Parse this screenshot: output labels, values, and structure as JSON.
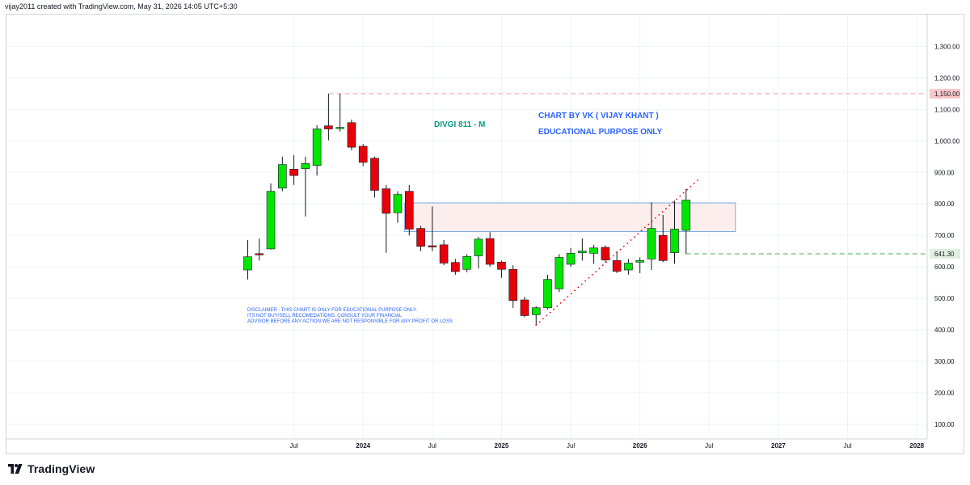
{
  "header": {
    "created_by": "vijay2011 created with TradingView.com, May 31, 2026 14:05 UTC+5:30"
  },
  "footer": {
    "brand": "TradingView",
    "logo_icon": "tradingview-logo-icon"
  },
  "annotations": {
    "symbol_label": "DIVGI 811 - M",
    "chart_by": "CHART BY VK ( VIJAY KHANT )",
    "educational": "EDUCATIONAL PURPOSE ONLY",
    "disclaimer": [
      "DISCLAIMER - THIS CHART IS ONLY FOR EDUCATIONAL PURPOSE ONLY.",
      "ITS NOT BUY/SELL RECOMEDATIONS. CONSULT YOUR FINANCIAL",
      "ADVISOR BEFORE ANY ACTION.WE ARE NOT RESPONSIBLE FOR ANY PROFIT OR LOSS"
    ]
  },
  "colors": {
    "up": "#00e600",
    "down": "#e8000b",
    "grid": "#f0f3fa",
    "axis_text": "#131722",
    "symbol_label": "#089981",
    "note_text": "#2962ff",
    "zone_fill": "#fdecec",
    "zone_border": "#7ba7e6",
    "resistance": "#f5a3a3",
    "support": "#4caf50",
    "trend_dots": "#e8000b",
    "price_badge_red": "#f8c8c8",
    "price_badge_green": "#e0efe0"
  },
  "chart_data": {
    "type": "candlestick",
    "interval": "M",
    "ylim": [
      60,
      1360
    ],
    "y_ticks": [
      100,
      200,
      300,
      400,
      500,
      600,
      700,
      800,
      900,
      1000,
      1100,
      1200,
      1300
    ],
    "y_tick_labels": [
      "100.00",
      "200.00",
      "300.00",
      "400.00",
      "500.00",
      "600.00",
      "700.00",
      "800.00",
      "900.00",
      "1,000.00",
      "1,100.00",
      "1,200.00",
      "1,300.00"
    ],
    "x_ticks": [
      {
        "label": "Jul",
        "date": "2023-07"
      },
      {
        "label": "2024",
        "date": "2024-01",
        "bold": true
      },
      {
        "label": "Jul",
        "date": "2024-07"
      },
      {
        "label": "2025",
        "date": "2025-01",
        "bold": true
      },
      {
        "label": "Jul",
        "date": "2025-07"
      },
      {
        "label": "2026",
        "date": "2026-01",
        "bold": true
      },
      {
        "label": "Jul",
        "date": "2026-07"
      },
      {
        "label": "2027",
        "date": "2027-01",
        "bold": true
      },
      {
        "label": "Jul",
        "date": "2027-07"
      },
      {
        "label": "2028",
        "date": "2028-01",
        "bold": true
      }
    ],
    "candles": [
      {
        "date": "2023-03",
        "o": 590,
        "h": 685,
        "l": 560,
        "c": 632
      },
      {
        "date": "2023-04",
        "o": 642,
        "h": 690,
        "l": 620,
        "c": 640
      },
      {
        "date": "2023-05",
        "o": 657,
        "h": 865,
        "l": 655,
        "c": 840
      },
      {
        "date": "2023-06",
        "o": 850,
        "h": 950,
        "l": 840,
        "c": 925
      },
      {
        "date": "2023-07",
        "o": 910,
        "h": 955,
        "l": 860,
        "c": 890
      },
      {
        "date": "2023-08",
        "o": 912,
        "h": 950,
        "l": 760,
        "c": 928
      },
      {
        "date": "2023-09",
        "o": 922,
        "h": 1050,
        "l": 890,
        "c": 1038
      },
      {
        "date": "2023-10",
        "o": 1048,
        "h": 1150,
        "l": 1002,
        "c": 1038
      },
      {
        "date": "2023-11",
        "o": 1040,
        "h": 1150,
        "l": 1030,
        "c": 1043
      },
      {
        "date": "2023-12",
        "o": 1058,
        "h": 1068,
        "l": 970,
        "c": 980
      },
      {
        "date": "2024-01",
        "o": 983,
        "h": 990,
        "l": 920,
        "c": 932
      },
      {
        "date": "2024-02",
        "o": 945,
        "h": 950,
        "l": 820,
        "c": 843
      },
      {
        "date": "2024-03",
        "o": 848,
        "h": 860,
        "l": 645,
        "c": 770
      },
      {
        "date": "2024-04",
        "o": 772,
        "h": 840,
        "l": 740,
        "c": 830
      },
      {
        "date": "2024-05",
        "o": 840,
        "h": 860,
        "l": 700,
        "c": 720
      },
      {
        "date": "2024-06",
        "o": 722,
        "h": 730,
        "l": 650,
        "c": 665
      },
      {
        "date": "2024-07",
        "o": 667,
        "h": 792,
        "l": 650,
        "c": 665
      },
      {
        "date": "2024-08",
        "o": 670,
        "h": 685,
        "l": 605,
        "c": 612
      },
      {
        "date": "2024-09",
        "o": 614,
        "h": 625,
        "l": 575,
        "c": 585
      },
      {
        "date": "2024-10",
        "o": 592,
        "h": 640,
        "l": 583,
        "c": 633
      },
      {
        "date": "2024-11",
        "o": 635,
        "h": 695,
        "l": 595,
        "c": 688
      },
      {
        "date": "2024-12",
        "o": 690,
        "h": 710,
        "l": 600,
        "c": 608
      },
      {
        "date": "2025-01",
        "o": 615,
        "h": 620,
        "l": 565,
        "c": 592
      },
      {
        "date": "2025-02",
        "o": 592,
        "h": 605,
        "l": 470,
        "c": 493
      },
      {
        "date": "2025-03",
        "o": 495,
        "h": 505,
        "l": 440,
        "c": 445
      },
      {
        "date": "2025-04",
        "o": 448,
        "h": 475,
        "l": 415,
        "c": 470
      },
      {
        "date": "2025-05",
        "o": 470,
        "h": 575,
        "l": 465,
        "c": 560
      },
      {
        "date": "2025-06",
        "o": 530,
        "h": 640,
        "l": 520,
        "c": 630
      },
      {
        "date": "2025-07",
        "o": 608,
        "h": 660,
        "l": 600,
        "c": 643
      },
      {
        "date": "2025-08",
        "o": 645,
        "h": 690,
        "l": 620,
        "c": 650
      },
      {
        "date": "2025-09",
        "o": 643,
        "h": 670,
        "l": 610,
        "c": 660
      },
      {
        "date": "2025-10",
        "o": 662,
        "h": 668,
        "l": 615,
        "c": 622
      },
      {
        "date": "2025-11",
        "o": 620,
        "h": 650,
        "l": 580,
        "c": 586
      },
      {
        "date": "2025-12",
        "o": 590,
        "h": 625,
        "l": 575,
        "c": 612
      },
      {
        "date": "2026-01",
        "o": 615,
        "h": 630,
        "l": 580,
        "c": 620
      },
      {
        "date": "2026-02",
        "o": 625,
        "h": 805,
        "l": 590,
        "c": 722
      },
      {
        "date": "2026-03",
        "o": 700,
        "h": 765,
        "l": 615,
        "c": 620
      },
      {
        "date": "2026-04",
        "o": 645,
        "h": 810,
        "l": 610,
        "c": 720
      },
      {
        "date": "2026-05",
        "o": 716,
        "h": 848,
        "l": 641.3,
        "c": 812
      }
    ],
    "horizontal_lines": [
      {
        "price": 1150,
        "label": "1,150.00",
        "style": "dashed",
        "color": "resistance"
      },
      {
        "price": 641.3,
        "label": "641.30",
        "style": "dashed",
        "color": "support"
      }
    ],
    "zone": {
      "from": "2024-05",
      "to": "2026-09",
      "low": 712,
      "high": 803
    },
    "trend_line": {
      "from": {
        "date": "2025-04",
        "price": 415
      },
      "to": {
        "date": "2026-06",
        "price": 875
      }
    }
  }
}
